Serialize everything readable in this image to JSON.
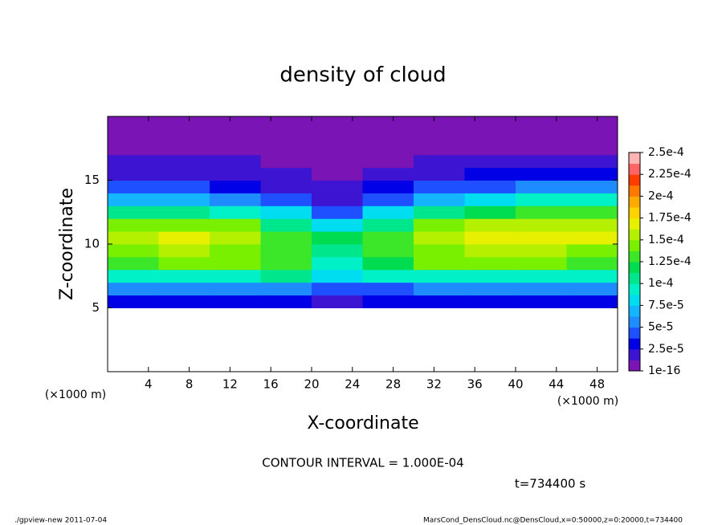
{
  "chart_data": {
    "type": "contour",
    "title": "density of cloud",
    "xlabel": "X-coordinate",
    "ylabel": "Z-coordinate",
    "x_unit": "(×1000 m)",
    "note": "CONTOUR INTERVAL = 1.000E-04",
    "time_label": "t=734400 s",
    "footer_left": "./gpview-new  2011-07-04",
    "footer_right": "MarsCond_DensCloud.nc@DensCloud,x=0:50000,z=0:20000,t=734400",
    "xlim": [
      0,
      50
    ],
    "ylim": [
      0,
      20
    ],
    "xticks": [
      4,
      8,
      12,
      16,
      20,
      24,
      28,
      32,
      36,
      40,
      44,
      48
    ],
    "yticks": [
      5,
      10,
      15
    ],
    "x": [
      2.5,
      7.5,
      12.5,
      17.5,
      22.5,
      27.5,
      32.5,
      37.5,
      42.5,
      47.5
    ],
    "z": [
      5.5,
      6.5,
      7.5,
      8.5,
      9.5,
      10.5,
      11.5,
      12.5,
      13.5,
      14.5,
      15.5,
      16.5,
      17.5,
      18.5,
      19.5
    ],
    "values": [
      [
        3e-05,
        3e-05,
        3e-05,
        3e-05,
        2e-05,
        3e-05,
        3e-05,
        3e-05,
        3e-05,
        3e-05
      ],
      [
        6e-05,
        6e-05,
        6e-05,
        6e-05,
        5e-05,
        5e-05,
        6e-05,
        6e-05,
        6e-05,
        6e-05
      ],
      [
        0.0001,
        0.0001,
        0.0001,
        0.00011,
        8e-05,
        9e-05,
        0.0001,
        0.0001,
        0.0001,
        0.0001
      ],
      [
        0.00013,
        0.00014,
        0.00014,
        0.00013,
        9e-05,
        0.00012,
        0.00014,
        0.00014,
        0.00014,
        0.00013
      ],
      [
        0.00015,
        0.00016,
        0.00015,
        0.00013,
        0.00011,
        0.00013,
        0.00015,
        0.00016,
        0.00016,
        0.00015
      ],
      [
        0.00016,
        0.00017,
        0.00016,
        0.00013,
        0.00012,
        0.00013,
        0.00016,
        0.00017,
        0.00017,
        0.00017
      ],
      [
        0.00015,
        0.00015,
        0.00015,
        0.00011,
        8e-05,
        0.00011,
        0.00015,
        0.00016,
        0.00016,
        0.00016
      ],
      [
        0.00011,
        0.00011,
        0.0001,
        8e-05,
        4e-05,
        8e-05,
        0.00011,
        0.00012,
        0.00013,
        0.00013
      ],
      [
        7e-05,
        7e-05,
        6e-05,
        4e-05,
        2.5e-05,
        5e-05,
        7e-05,
        8e-05,
        0.0001,
        0.0001
      ],
      [
        4e-05,
        4e-05,
        3.5e-05,
        2.2e-05,
        1.5e-05,
        3e-05,
        4e-05,
        5e-05,
        6e-05,
        6e-05
      ],
      [
        2.5e-05,
        2.5e-05,
        2e-05,
        1.3e-05,
        8e-06,
        1.8e-05,
        2.5e-05,
        3e-05,
        3e-05,
        3e-05
      ],
      [
        1.5e-05,
        1.5e-05,
        1.3e-05,
        8e-06,
        3e-06,
        1e-05,
        1.5e-05,
        1.8e-05,
        2e-05,
        2e-05
      ],
      [
        1e-05,
        1e-05,
        8e-06,
        5e-06,
        1e-06,
        6e-06,
        1e-05,
        1.2e-05,
        1.2e-05,
        1.2e-05
      ],
      [
        5e-06,
        5e-06,
        5e-06,
        3e-06,
        1e-06,
        3e-06,
        5e-06,
        6e-06,
        6e-06,
        6e-06
      ],
      [
        2e-06,
        2e-06,
        2e-06,
        1e-06,
        1e-06,
        1e-06,
        2e-06,
        3e-06,
        3e-06,
        3e-06
      ]
    ],
    "clim": [
      1e-16,
      0.00025
    ],
    "colorbar_ticks": [
      {
        "value": 1e-16,
        "label": "1e-16"
      },
      {
        "value": 2.5e-05,
        "label": "2.5e-5"
      },
      {
        "value": 5e-05,
        "label": "5e-5"
      },
      {
        "value": 7.5e-05,
        "label": "7.5e-5"
      },
      {
        "value": 0.0001,
        "label": "1e-4"
      },
      {
        "value": 0.000125,
        "label": "1.25e-4"
      },
      {
        "value": 0.00015,
        "label": "1.5e-4"
      },
      {
        "value": 0.000175,
        "label": "1.75e-4"
      },
      {
        "value": 0.0002,
        "label": "2e-4"
      },
      {
        "value": 0.000225,
        "label": "2.25e-4"
      },
      {
        "value": 0.00025,
        "label": "2.5e-4"
      }
    ],
    "level_colors": [
      "#7a14b4",
      "#3c14d2",
      "#0000e6",
      "#1e50ff",
      "#1e8cff",
      "#14b4ff",
      "#00dcf0",
      "#00f0c8",
      "#00e68c",
      "#00dc50",
      "#3ce628",
      "#78f000",
      "#b4f000",
      "#e6f000",
      "#ffd200",
      "#ffaa00",
      "#ff7800",
      "#ff3c00",
      "#ff6464",
      "#ffb4b4"
    ]
  }
}
